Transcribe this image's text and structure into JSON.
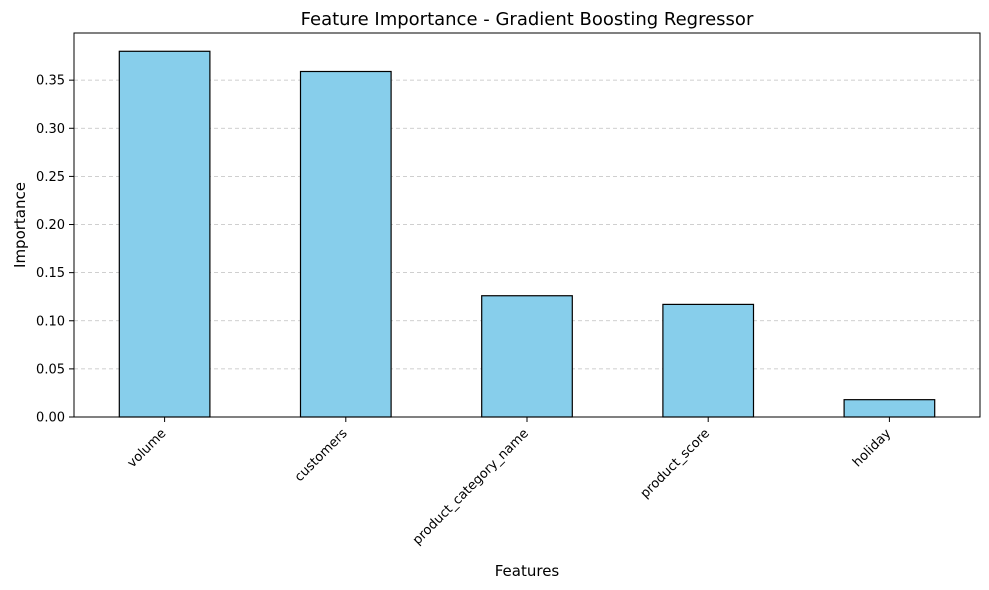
{
  "chart_data": {
    "type": "bar",
    "title": "Feature Importance - Gradient Boosting Regressor",
    "xlabel": "Features",
    "ylabel": "Importance",
    "categories": [
      "volume",
      "customers",
      "product_category_name",
      "product_score",
      "holiday"
    ],
    "values": [
      0.38,
      0.359,
      0.126,
      0.117,
      0.018
    ],
    "ylim": [
      0,
      0.399
    ],
    "yticks": [
      0.0,
      0.05,
      0.1,
      0.15,
      0.2,
      0.25,
      0.3,
      0.35
    ],
    "ytick_labels": [
      "0.00",
      "0.05",
      "0.10",
      "0.15",
      "0.20",
      "0.25",
      "0.30",
      "0.35"
    ],
    "grid": "y-dashed",
    "legend": "none",
    "bar_color": "#87ceeb",
    "edge_color": "#000000"
  }
}
